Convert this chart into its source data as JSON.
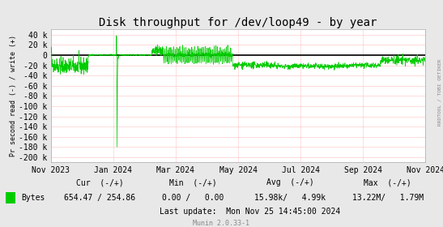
{
  "title": "Disk throughput for /dev/loop49 - by year",
  "ylabel": "Pr second read (-) / write (+)",
  "background_color": "#e8e8e8",
  "plot_bg_color": "#ffffff",
  "line_color": "#00cc00",
  "zero_line_color": "#000000",
  "x_tick_labels": [
    "Nov 2023",
    "Jan 2024",
    "Mar 2024",
    "May 2024",
    "Jul 2024",
    "Sep 2024",
    "Nov 2024"
  ],
  "y_tick_labels": [
    "40 k",
    "20 k",
    "0",
    "-20 k",
    "-40 k",
    "-60 k",
    "-80 k",
    "-100 k",
    "-120 k",
    "-140 k",
    "-160 k",
    "-180 k",
    "-200 k"
  ],
  "y_tick_values": [
    40000,
    20000,
    0,
    -20000,
    -40000,
    -60000,
    -80000,
    -100000,
    -120000,
    -140000,
    -160000,
    -180000,
    -200000
  ],
  "ylim": [
    -210000,
    50000
  ],
  "legend_label": "Bytes",
  "legend_color": "#00cc00",
  "cur_label": "Cur  (-/+)",
  "cur_value": "654.47 / 254.86",
  "min_label": "Min  (-/+)",
  "min_value": "0.00 /   0.00",
  "avg_label": "Avg  (-/+)",
  "avg_value": "15.98k/   4.99k",
  "max_label": "Max  (-/+)",
  "max_value": "13.22M/   1.79M",
  "last_update": "Last update:  Mon Nov 25 14:45:00 2024",
  "munin_label": "Munin 2.0.33-1",
  "rrdtool_label": "RRDTOOL / TOBI OETIKER",
  "title_fontsize": 10,
  "tick_fontsize": 7,
  "legend_fontsize": 7,
  "ylabel_fontsize": 6
}
